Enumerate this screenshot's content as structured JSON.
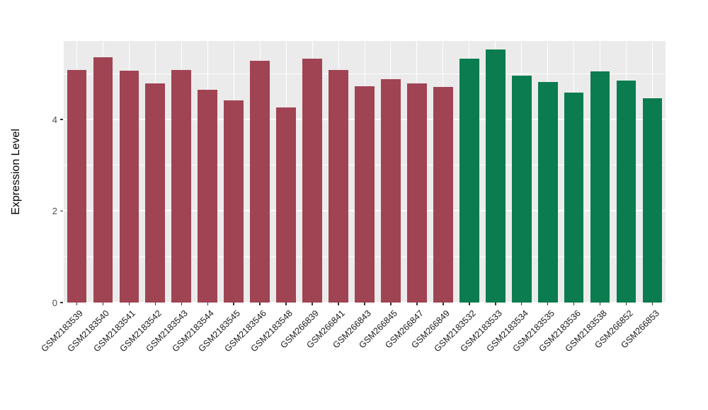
{
  "chart_data": {
    "type": "bar",
    "title": "",
    "xlabel": "",
    "ylabel": "Expression Level",
    "ylim": [
      0,
      5.71
    ],
    "yticks": [
      0,
      2,
      4
    ],
    "minor_ticks": [
      1,
      3,
      5
    ],
    "legend": "none",
    "grid": "on",
    "panel_background": "#EBEBEB",
    "gridline_color": "#FFFFFF",
    "group_colors": {
      "group1": "#A04454",
      "group2": "#0A7C4F"
    },
    "bars": [
      {
        "label": "GSM2183539",
        "value": 5.08,
        "group": "group1"
      },
      {
        "label": "GSM2183540",
        "value": 5.35,
        "group": "group1"
      },
      {
        "label": "GSM2183541",
        "value": 5.06,
        "group": "group1"
      },
      {
        "label": "GSM2183542",
        "value": 4.78,
        "group": "group1"
      },
      {
        "label": "GSM2183543",
        "value": 5.08,
        "group": "group1"
      },
      {
        "label": "GSM2183544",
        "value": 4.64,
        "group": "group1"
      },
      {
        "label": "GSM2183545",
        "value": 4.42,
        "group": "group1"
      },
      {
        "label": "GSM2183546",
        "value": 5.28,
        "group": "group1"
      },
      {
        "label": "GSM2183548",
        "value": 4.26,
        "group": "group1"
      },
      {
        "label": "GSM266839",
        "value": 5.32,
        "group": "group1"
      },
      {
        "label": "GSM266841",
        "value": 5.08,
        "group": "group1"
      },
      {
        "label": "GSM266843",
        "value": 4.72,
        "group": "group1"
      },
      {
        "label": "GSM266845",
        "value": 4.88,
        "group": "group1"
      },
      {
        "label": "GSM266847",
        "value": 4.78,
        "group": "group1"
      },
      {
        "label": "GSM266849",
        "value": 4.7,
        "group": "group1"
      },
      {
        "label": "GSM2183532",
        "value": 5.33,
        "group": "group2"
      },
      {
        "label": "GSM2183533",
        "value": 5.52,
        "group": "group2"
      },
      {
        "label": "GSM2183534",
        "value": 4.95,
        "group": "group2"
      },
      {
        "label": "GSM2183535",
        "value": 4.82,
        "group": "group2"
      },
      {
        "label": "GSM2183536",
        "value": 4.58,
        "group": "group2"
      },
      {
        "label": "GSM2183538",
        "value": 5.04,
        "group": "group2"
      },
      {
        "label": "GSM266852",
        "value": 4.84,
        "group": "group2"
      },
      {
        "label": "GSM266853",
        "value": 4.46,
        "group": "group2"
      }
    ]
  }
}
